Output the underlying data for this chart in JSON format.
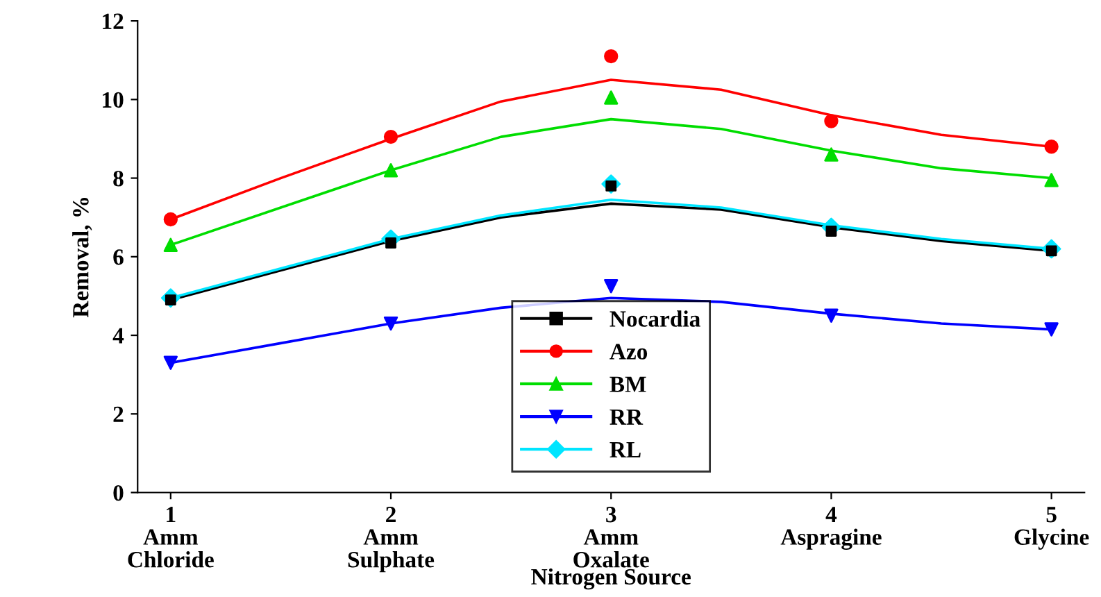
{
  "chart_data": {
    "type": "scatter",
    "xlabel": "Nitrogen Source",
    "ylabel": "Removal, %",
    "xlim": [
      0.85,
      5.15
    ],
    "ylim": [
      0,
      12
    ],
    "xticks": [
      {
        "value": 1,
        "label": "1\nAmm\nChloride"
      },
      {
        "value": 2,
        "label": "2\nAmm\nSulphate"
      },
      {
        "value": 3,
        "label": "3\nAmm\nOxalate"
      },
      {
        "value": 4,
        "label": "4\nAspragine"
      },
      {
        "value": 5,
        "label": "5\nGlycine"
      }
    ],
    "yticks": [
      0,
      2,
      4,
      6,
      8,
      10,
      12
    ],
    "grid": false,
    "legend": "bottom",
    "series": [
      {
        "name": "Nocardia",
        "color": "#000000",
        "marker": "square",
        "x": [
          1,
          2,
          3,
          4,
          5
        ],
        "values": [
          4.9,
          6.35,
          7.8,
          6.65,
          6.15
        ]
      },
      {
        "name": "Azo",
        "color": "#ff0000",
        "marker": "circle",
        "x": [
          1,
          2,
          3,
          4,
          5
        ],
        "values": [
          6.95,
          9.05,
          11.1,
          9.45,
          8.8
        ]
      },
      {
        "name": "BM",
        "color": "#00dd00",
        "marker": "triangle",
        "x": [
          1,
          2,
          3,
          4,
          5
        ],
        "values": [
          6.3,
          8.2,
          10.05,
          8.6,
          7.95
        ]
      },
      {
        "name": "RR",
        "color": "#0000ff",
        "marker": "triangle-down",
        "x": [
          1,
          2,
          3,
          4,
          5
        ],
        "values": [
          3.3,
          4.3,
          5.25,
          4.5,
          4.15
        ]
      },
      {
        "name": "RL",
        "color": "#00e5ff",
        "marker": "diamond",
        "x": [
          1,
          2,
          3,
          4,
          5
        ],
        "values": [
          4.95,
          6.45,
          7.85,
          6.75,
          6.2
        ]
      },
      {
        "type": "line",
        "color": "#000000",
        "marker": "none",
        "x": [
          1,
          1.5,
          2,
          2.5,
          3,
          3.5,
          4,
          4.5,
          5
        ],
        "values": [
          4.9,
          5.65,
          6.4,
          7.0,
          7.35,
          7.2,
          6.75,
          6.4,
          6.15
        ]
      },
      {
        "type": "line",
        "color": "#ff0000",
        "marker": "none",
        "x": [
          1,
          1.5,
          2,
          2.5,
          3,
          3.5,
          4,
          4.5,
          5
        ],
        "values": [
          6.95,
          8.0,
          9.0,
          9.95,
          10.5,
          10.25,
          9.6,
          9.1,
          8.8
        ]
      },
      {
        "type": "line",
        "color": "#00dd00",
        "marker": "none",
        "x": [
          1,
          1.5,
          2,
          2.5,
          3,
          3.5,
          4,
          4.5,
          5
        ],
        "values": [
          6.3,
          7.25,
          8.2,
          9.05,
          9.5,
          9.25,
          8.7,
          8.25,
          8.0
        ]
      },
      {
        "type": "line",
        "color": "#0000ff",
        "marker": "none",
        "x": [
          1,
          1.5,
          2,
          2.5,
          3,
          3.5,
          4,
          4.5,
          5
        ],
        "values": [
          3.3,
          3.8,
          4.3,
          4.7,
          4.95,
          4.85,
          4.55,
          4.3,
          4.15
        ]
      },
      {
        "type": "line",
        "color": "#00e5ff",
        "marker": "none",
        "x": [
          1,
          1.5,
          2,
          2.5,
          3,
          3.5,
          4,
          4.5,
          5
        ],
        "values": [
          4.95,
          5.7,
          6.45,
          7.05,
          7.45,
          7.25,
          6.8,
          6.45,
          6.2
        ]
      }
    ]
  }
}
